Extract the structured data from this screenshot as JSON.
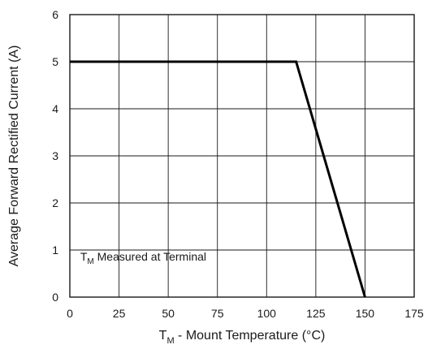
{
  "chart_data": {
    "type": "line",
    "xlabel_main": "T",
    "xlabel_sub": "M",
    "xlabel_rest": " - Mount Temperature (°C)",
    "ylabel": "Average Forward Rectified Current (A)",
    "xlim": [
      0,
      175
    ],
    "ylim": [
      0,
      6
    ],
    "xticks": [
      0,
      25,
      50,
      75,
      100,
      125,
      150,
      175
    ],
    "yticks": [
      0,
      1,
      2,
      3,
      4,
      5,
      6
    ],
    "grid": true,
    "series": [
      {
        "x": [
          0,
          115,
          150
        ],
        "y": [
          5,
          5,
          0
        ]
      }
    ],
    "annotation": {
      "main": "T",
      "sub": "M",
      "rest": " Measured at Terminal",
      "x": 2,
      "y": 0.6
    }
  }
}
